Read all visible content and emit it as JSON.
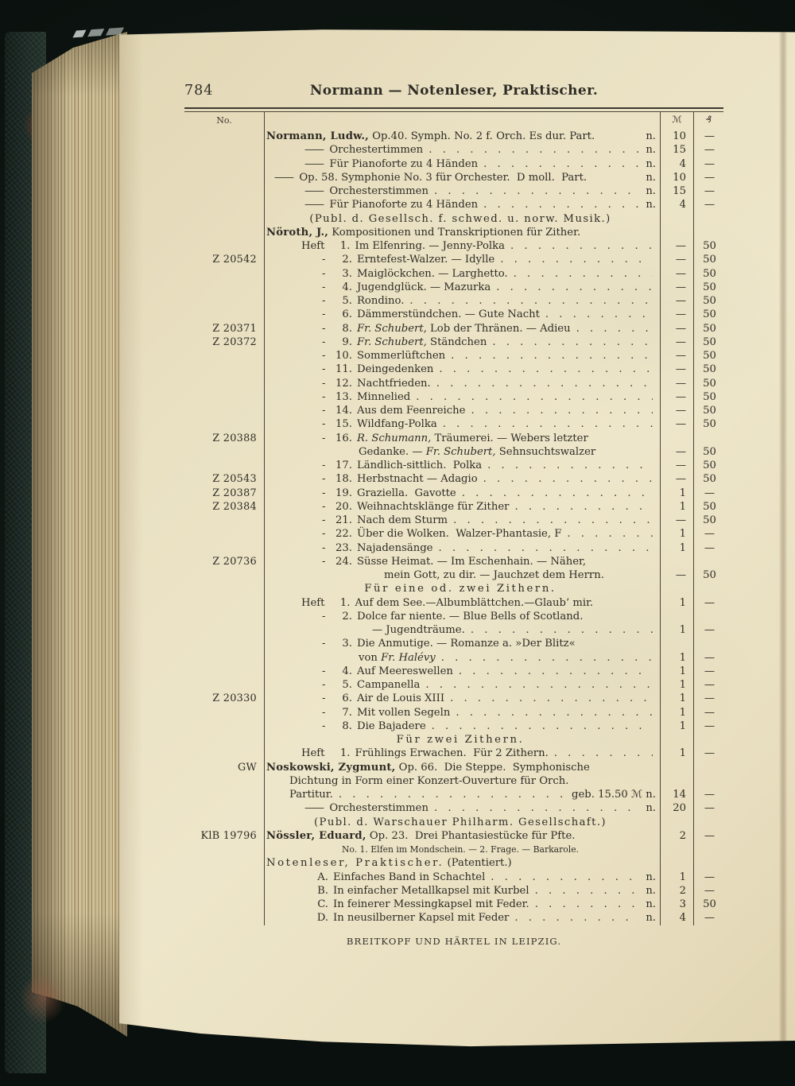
{
  "page": {
    "number": "784",
    "header": "Normann — Notenleser, Praktischer.",
    "footer": "BREITKOPF UND HÄRTEL IN LEIPZIG."
  },
  "table": {
    "no_header": "No.",
    "mark_header": "ℳ",
    "pf_header": "₰",
    "rows": [
      {
        "cls": "author",
        "seg": [
          {
            "t": "Normann, Ludw.,",
            "b": 1
          },
          {
            "t": " Op.40. Symph. No. 2 f. Orch. Es dur. Part."
          }
        ],
        "tail": "n.",
        "m": "10",
        "pf": "—"
      },
      {
        "cls": "stim",
        "pre": "——",
        "seg": [
          {
            "t": "Orchestertimmen"
          }
        ],
        "dots": 1,
        "tail": "n.",
        "m": "15",
        "pf": "—"
      },
      {
        "cls": "stim",
        "pre": "——",
        "seg": [
          {
            "t": "Für Pianoforte zu 4 Händen"
          }
        ],
        "dots": 1,
        "tail": "n.",
        "m": "4",
        "pf": "—"
      },
      {
        "cls": "opus",
        "pre": "——",
        "seg": [
          {
            "t": "Op. 58. Symphonie No. 3 für Orchester.  D moll.  Part."
          }
        ],
        "tail": "n.",
        "m": "10",
        "pf": "—"
      },
      {
        "cls": "stim",
        "pre": "——",
        "seg": [
          {
            "t": "Orchesterstimmen"
          }
        ],
        "dots": 1,
        "tail": "n.",
        "m": "15",
        "pf": "—"
      },
      {
        "cls": "stim",
        "pre": "——",
        "seg": [
          {
            "t": "Für Pianoforte zu 4 Händen"
          }
        ],
        "dots": 1,
        "tail": "n.",
        "m": "4",
        "pf": "—"
      },
      {
        "cls": "pub",
        "seg": [
          {
            "t": "(Publ. d. Gesellsch. f. schwed. u. norw. Musik.)",
            "sp": "ls1"
          }
        ]
      },
      {
        "cls": "author",
        "seg": [
          {
            "t": "Nöroth, J.,",
            "b": 1
          },
          {
            "t": " Kompositionen und Transkriptionen für Zither."
          }
        ]
      },
      {
        "cls": "heft",
        "pre": "Heft",
        "num": "1.",
        "seg": [
          {
            "t": "Im Elfenring. — Jenny-Polka"
          }
        ],
        "dots": 1,
        "m": "—",
        "pf": "50"
      },
      {
        "no": "Z 20542",
        "cls": "item",
        "pre": "-",
        "num": "2.",
        "seg": [
          {
            "t": "Erntefest-Walzer. — Idylle"
          }
        ],
        "dots": 1,
        "m": "—",
        "pf": "50"
      },
      {
        "cls": "item",
        "pre": "-",
        "num": "3.",
        "seg": [
          {
            "t": "Maiglöckchen. — Larghetto."
          }
        ],
        "dots": 1,
        "m": "—",
        "pf": "50"
      },
      {
        "cls": "item",
        "pre": "-",
        "num": "4.",
        "seg": [
          {
            "t": "Jugendglück. — Mazurka"
          }
        ],
        "dots": 1,
        "m": "—",
        "pf": "50"
      },
      {
        "cls": "item",
        "pre": "-",
        "num": "5.",
        "seg": [
          {
            "t": "Rondino."
          }
        ],
        "dots": 1,
        "m": "—",
        "pf": "50"
      },
      {
        "cls": "item",
        "pre": "-",
        "num": "6.",
        "seg": [
          {
            "t": "Dämmerstündchen. — Gute Nacht"
          }
        ],
        "dots": 1,
        "m": "—",
        "pf": "50"
      },
      {
        "no": "Z 20371",
        "cls": "item",
        "pre": "-",
        "num": "8.",
        "seg": [
          {
            "t": "Fr. Schubert,",
            "i": 1
          },
          {
            "t": " Lob der Thränen. — Adieu"
          }
        ],
        "dots": 1,
        "m": "—",
        "pf": "50"
      },
      {
        "no": "Z 20372",
        "cls": "item",
        "pre": "-",
        "num": "9.",
        "seg": [
          {
            "t": "Fr. Schubert,",
            "i": 1
          },
          {
            "t": " Ständchen"
          }
        ],
        "dots": 1,
        "m": "—",
        "pf": "50"
      },
      {
        "cls": "item",
        "pre": "-",
        "num": "10.",
        "seg": [
          {
            "t": "Sommerlüftchen"
          }
        ],
        "dots": 1,
        "m": "—",
        "pf": "50"
      },
      {
        "cls": "item",
        "pre": "-",
        "num": "11.",
        "seg": [
          {
            "t": "Deingedenken"
          }
        ],
        "dots": 1,
        "m": "—",
        "pf": "50"
      },
      {
        "cls": "item",
        "pre": "-",
        "num": "12.",
        "seg": [
          {
            "t": "Nachtfrieden."
          }
        ],
        "dots": 1,
        "m": "—",
        "pf": "50"
      },
      {
        "cls": "item",
        "pre": "-",
        "num": "13.",
        "seg": [
          {
            "t": "Minnelied"
          }
        ],
        "dots": 1,
        "m": "—",
        "pf": "50"
      },
      {
        "cls": "item",
        "pre": "-",
        "num": "14.",
        "seg": [
          {
            "t": "Aus dem Feenreiche"
          }
        ],
        "dots": 1,
        "m": "—",
        "pf": "50"
      },
      {
        "cls": "item",
        "pre": "-",
        "num": "15.",
        "seg": [
          {
            "t": "Wildfang-Polka"
          }
        ],
        "dots": 1,
        "m": "—",
        "pf": "50"
      },
      {
        "no": "Z 20388",
        "cls": "item",
        "pre": "-",
        "num": "16.",
        "seg": [
          {
            "t": "R. Schumann,",
            "i": 1
          },
          {
            "t": " Träumerei. — Webers letzter"
          }
        ]
      },
      {
        "cls": "wrap",
        "seg": [
          {
            "t": "Gedanke. — "
          },
          {
            "t": "Fr. Schubert,",
            "i": 1
          },
          {
            "t": " Sehnsuchtswalzer"
          }
        ],
        "m": "—",
        "pf": "50"
      },
      {
        "cls": "item",
        "pre": "-",
        "num": "17.",
        "seg": [
          {
            "t": "Ländlich-sittlich.  Polka"
          }
        ],
        "dots": 1,
        "m": "—",
        "pf": "50"
      },
      {
        "no": "Z 20543",
        "cls": "item",
        "pre": "-",
        "num": "18.",
        "seg": [
          {
            "t": "Herbstnacht — Adagio"
          }
        ],
        "dots": 1,
        "m": "—",
        "pf": "50"
      },
      {
        "no": "Z 20387",
        "cls": "item",
        "pre": "-",
        "num": "19.",
        "seg": [
          {
            "t": "Graziella.  Gavotte"
          }
        ],
        "dots": 1,
        "m": "1",
        "pf": "—"
      },
      {
        "no": "Z 20384",
        "cls": "item",
        "pre": "-",
        "num": "20.",
        "seg": [
          {
            "t": "Weihnachtsklänge für Zither"
          }
        ],
        "dots": 1,
        "m": "1",
        "pf": "50"
      },
      {
        "cls": "item",
        "pre": "-",
        "num": "21.",
        "seg": [
          {
            "t": "Nach dem Sturm"
          }
        ],
        "dots": 1,
        "m": "—",
        "pf": "50"
      },
      {
        "cls": "item",
        "pre": "-",
        "num": "22.",
        "seg": [
          {
            "t": "Über die Wolken.  Walzer-Phantasie, F"
          }
        ],
        "dots": 1,
        "m": "1",
        "pf": "—"
      },
      {
        "cls": "item",
        "pre": "-",
        "num": "23.",
        "seg": [
          {
            "t": "Najadensänge"
          }
        ],
        "dots": 1,
        "m": "1",
        "pf": "—"
      },
      {
        "no": "Z 20736",
        "cls": "item",
        "pre": "-",
        "num": "24.",
        "seg": [
          {
            "t": "Süsse Heimat. — Im Eschenhain. — Näher,"
          }
        ]
      },
      {
        "cls": "wrap",
        "ind": 150,
        "seg": [
          {
            "t": "mein Gott, zu dir. — Jauchzet dem Herrn."
          }
        ],
        "m": "—",
        "pf": "50"
      },
      {
        "cls": "center",
        "seg": [
          {
            "t": "Für eine od. zwei Zithern.",
            "sp": "ls"
          }
        ]
      },
      {
        "cls": "heft",
        "pre": "Heft",
        "num": "1.",
        "seg": [
          {
            "t": "Auf dem See.—Albumblättchen.—Glaub’ mir."
          }
        ],
        "m": "1",
        "pf": "—"
      },
      {
        "cls": "item",
        "pre": "-",
        "num": "2.",
        "seg": [
          {
            "t": "Dolce far niente. — Blue Bells of Scotland."
          }
        ]
      },
      {
        "cls": "wrap",
        "ind": 135,
        "seg": [
          {
            "t": "— Jugendträume."
          }
        ],
        "dots": 1,
        "m": "1",
        "pf": "—"
      },
      {
        "cls": "item",
        "pre": "-",
        "num": "3.",
        "seg": [
          {
            "t": "Die Anmutige. — Romanze a. »Der Blitz«"
          }
        ]
      },
      {
        "cls": "wrap",
        "seg": [
          {
            "t": "von "
          },
          {
            "t": "Fr. Halévy",
            "i": 1
          }
        ],
        "dots": 1,
        "m": "1",
        "pf": "—"
      },
      {
        "cls": "item",
        "pre": "-",
        "num": "4.",
        "seg": [
          {
            "t": "Auf Meereswellen"
          }
        ],
        "dots": 1,
        "m": "1",
        "pf": "—"
      },
      {
        "cls": "item",
        "pre": "-",
        "num": "5.",
        "seg": [
          {
            "t": "Campanella"
          }
        ],
        "dots": 1,
        "m": "1",
        "pf": "—"
      },
      {
        "no": "Z 20330",
        "cls": "item",
        "pre": "-",
        "num": "6.",
        "seg": [
          {
            "t": "Air de Louis XIII"
          }
        ],
        "dots": 1,
        "m": "1",
        "pf": "—"
      },
      {
        "cls": "item",
        "pre": "-",
        "num": "7.",
        "seg": [
          {
            "t": "Mit vollen Segeln"
          }
        ],
        "dots": 1,
        "m": "1",
        "pf": "—"
      },
      {
        "cls": "item",
        "pre": "-",
        "num": "8.",
        "seg": [
          {
            "t": "Die Bajadere"
          }
        ],
        "dots": 1,
        "m": "1",
        "pf": "—"
      },
      {
        "cls": "center",
        "seg": [
          {
            "t": "Für zwei Zithern.",
            "sp": "ls"
          }
        ]
      },
      {
        "cls": "heft",
        "pre": "Heft",
        "num": "1.",
        "seg": [
          {
            "t": "Frühlings Erwachen.  Für 2 Zithern."
          }
        ],
        "dots": 1,
        "m": "1",
        "pf": "—"
      },
      {
        "no": "GW",
        "cls": "author",
        "seg": [
          {
            "t": "Noskowski, Zygmunt,",
            "b": 1
          },
          {
            "t": " Op. 66.  Die Steppe.  Symphonische"
          }
        ]
      },
      {
        "cls": "wrap2",
        "seg": [
          {
            "t": "Dichtung in Form einer Konzert-Ouverture für Orch."
          }
        ]
      },
      {
        "cls": "wrap2",
        "seg": [
          {
            "t": "Partitur."
          }
        ],
        "dots": 1,
        "tail": "geb. 15.50 ℳ n.",
        "m": "14",
        "pf": "—"
      },
      {
        "cls": "stim",
        "pre": "——",
        "seg": [
          {
            "t": "Orchesterstimmen"
          }
        ],
        "dots": 1,
        "tail": "n.",
        "m": "20",
        "pf": "—"
      },
      {
        "cls": "pub",
        "seg": [
          {
            "t": "(Publ. d. Warschauer Philharm. Gesellschaft.)",
            "sp": "ls1"
          }
        ]
      },
      {
        "no": "KlB 19796",
        "cls": "author",
        "seg": [
          {
            "t": "Nössler, Eduard,",
            "b": 1
          },
          {
            "t": " Op. 23.  Drei Phantasiestücke für Pfte."
          }
        ],
        "m": "2",
        "pf": "—"
      },
      {
        "cls": "note",
        "seg": [
          {
            "t": "No. 1. Elfen im Mondschein. — 2. Frage. — Barkarole."
          }
        ]
      },
      {
        "cls": "author",
        "seg": [
          {
            "t": "Notenleser, Praktischer.",
            "sp": "ls"
          },
          {
            "t": " (Patentiert.)"
          }
        ]
      },
      {
        "cls": "opt",
        "num": "A.",
        "seg": [
          {
            "t": "Einfaches Band in Schachtel"
          }
        ],
        "dots": 1,
        "tail": "n.",
        "m": "1",
        "pf": "—"
      },
      {
        "cls": "opt",
        "num": "B.",
        "seg": [
          {
            "t": "In einfacher Metallkapsel mit Kurbel"
          }
        ],
        "dots": 1,
        "tail": "n.",
        "m": "2",
        "pf": "—"
      },
      {
        "cls": "opt",
        "num": "C.",
        "seg": [
          {
            "t": "In feinerer Messingkapsel mit Feder."
          }
        ],
        "dots": 1,
        "tail": "n.",
        "m": "3",
        "pf": "50"
      },
      {
        "cls": "opt",
        "num": "D.",
        "seg": [
          {
            "t": "In neusilberner Kapsel mit Feder"
          }
        ],
        "dots": 1,
        "tail": "n.",
        "m": "4",
        "pf": "—"
      }
    ]
  }
}
